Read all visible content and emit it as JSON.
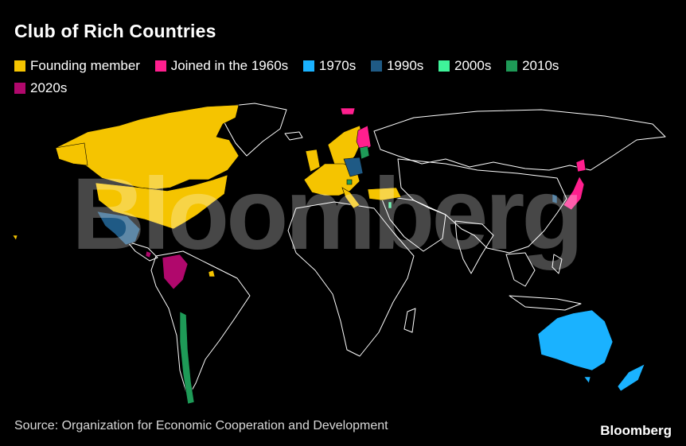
{
  "title": "Club of Rich Countries",
  "legend": [
    {
      "label": "Founding member",
      "color": "#f5c400"
    },
    {
      "label": "Joined in the 1960s",
      "color": "#ff1f8e"
    },
    {
      "label": "1970s",
      "color": "#1ab2ff"
    },
    {
      "label": "1990s",
      "color": "#1f5a85"
    },
    {
      "label": "2000s",
      "color": "#3ff39a"
    },
    {
      "label": "2010s",
      "color": "#1e9a57"
    },
    {
      "label": "2020s",
      "color": "#b0086c"
    }
  ],
  "source": "Source: Organization for Economic Cooperation and Development",
  "brand": "Bloomberg",
  "watermark": "Bloomberg",
  "outline_color": "#ffffff"
}
